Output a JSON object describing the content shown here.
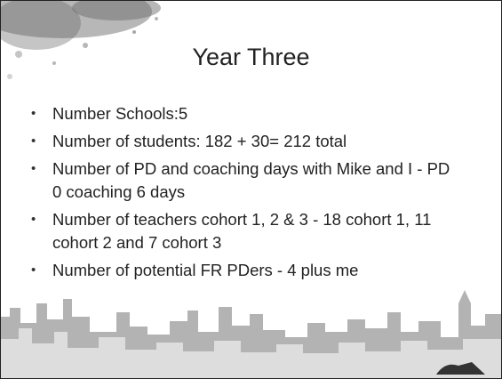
{
  "title": "Year Three",
  "bullets": [
    "Number Schools:5",
    "Number of students: 182 + 30= 212 total",
    "Number of PD and coaching days with Mike and I - PD 0 coaching 6 days",
    "Number of teachers cohort 1, 2 & 3 - 18 cohort 1, 11 cohort 2 and 7 cohort 3",
    "Number of potential FR PDers - 4 plus me"
  ]
}
